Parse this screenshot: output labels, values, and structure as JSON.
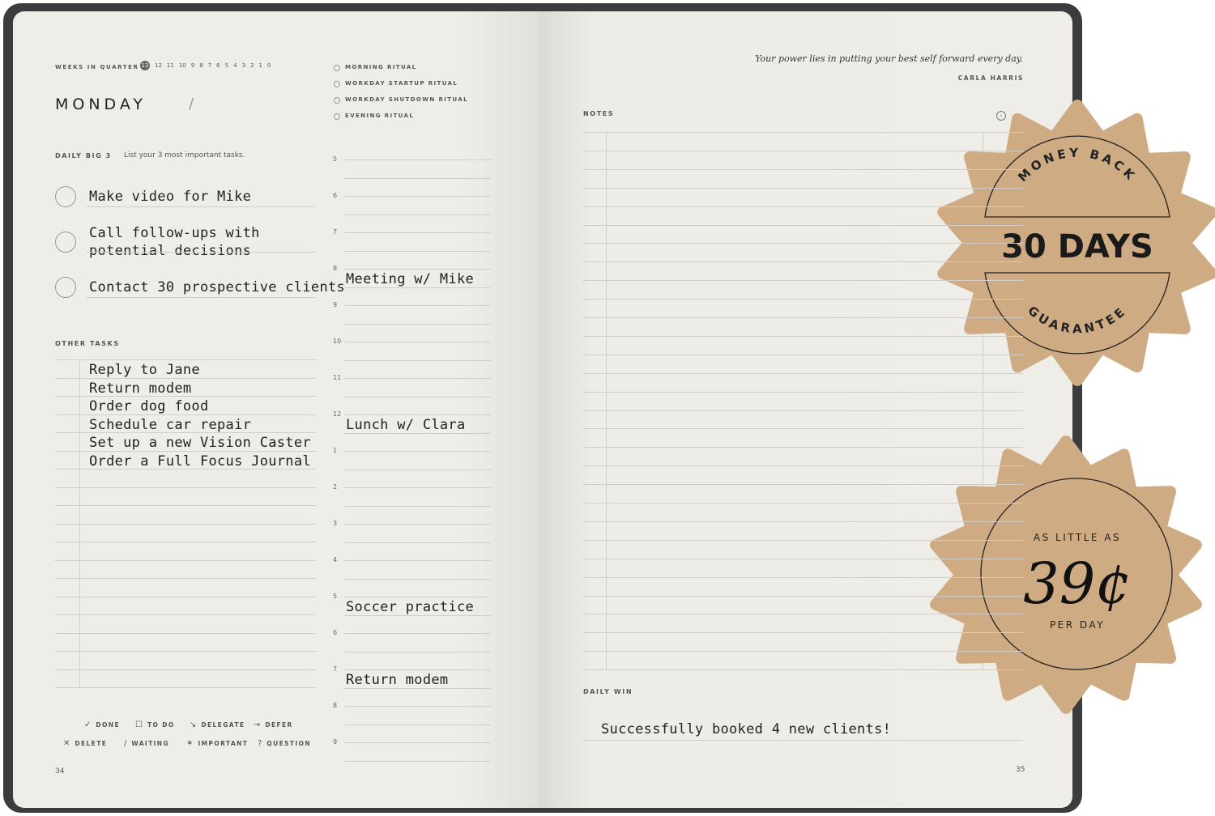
{
  "left_page": {
    "weeks_label": "WEEKS IN QUARTER",
    "weeks": [
      "13",
      "12",
      "11",
      "10",
      "9",
      "8",
      "7",
      "6",
      "5",
      "4",
      "3",
      "2",
      "1",
      "0"
    ],
    "day": "MONDAY",
    "date_sep": "/",
    "rituals": [
      "MORNING RITUAL",
      "WORKDAY STARTUP RITUAL",
      "WORKDAY SHUTDOWN RITUAL",
      "EVENING RITUAL"
    ],
    "big3_label": "DAILY BIG 3",
    "big3_hint": "List your 3 most important tasks.",
    "big3": [
      "Make video for Mike",
      "Call follow-ups with\npotential decisions",
      "Contact 30 prospective clients"
    ],
    "other_label": "OTHER TASKS",
    "other": [
      "Reply to Jane",
      "Return modem",
      "Order dog food",
      "Schedule car repair",
      "Set up a new Vision Caster",
      "Order a Full Focus Journal"
    ],
    "hours": [
      "5",
      "6",
      "7",
      "8",
      "9",
      "10",
      "11",
      "12",
      "1",
      "2",
      "3",
      "4",
      "5",
      "6",
      "7",
      "8",
      "9"
    ],
    "schedule": [
      {
        "hour_index": 3,
        "text": "Meeting w/ Mike"
      },
      {
        "hour_index": 7,
        "text": "Lunch w/ Clara"
      },
      {
        "hour_index": 12,
        "text": "Soccer practice"
      },
      {
        "hour_index": 14,
        "text": "Return modem"
      }
    ],
    "legend": [
      {
        "icon": "✓",
        "label": "DONE"
      },
      {
        "icon": "☐",
        "label": "TO DO"
      },
      {
        "icon": "↘",
        "label": "DELEGATE"
      },
      {
        "icon": "→",
        "label": "DEFER"
      },
      {
        "icon": "✕",
        "label": "DELETE"
      },
      {
        "icon": "/",
        "label": "WAITING"
      },
      {
        "icon": "✶",
        "label": "IMPORTANT"
      },
      {
        "icon": "?",
        "label": "QUESTION"
      }
    ],
    "page_number": "34"
  },
  "right_page": {
    "quote": "Your power lies in putting your best self forward every day.",
    "author": "CARLA HARRIS",
    "notes_label": "NOTES",
    "daily_win_label": "DAILY WIN",
    "daily_win": "Successfully booked 4 new clients!",
    "page_number": "35"
  },
  "badges": {
    "guarantee_top": "MONEY BACK",
    "guarantee_main": "30 DAYS",
    "guarantee_bottom": "GUARANTEE",
    "price_top": "AS LITTLE AS",
    "price_main": "39¢",
    "price_bottom": "PER DAY",
    "color": "#cfab84"
  }
}
